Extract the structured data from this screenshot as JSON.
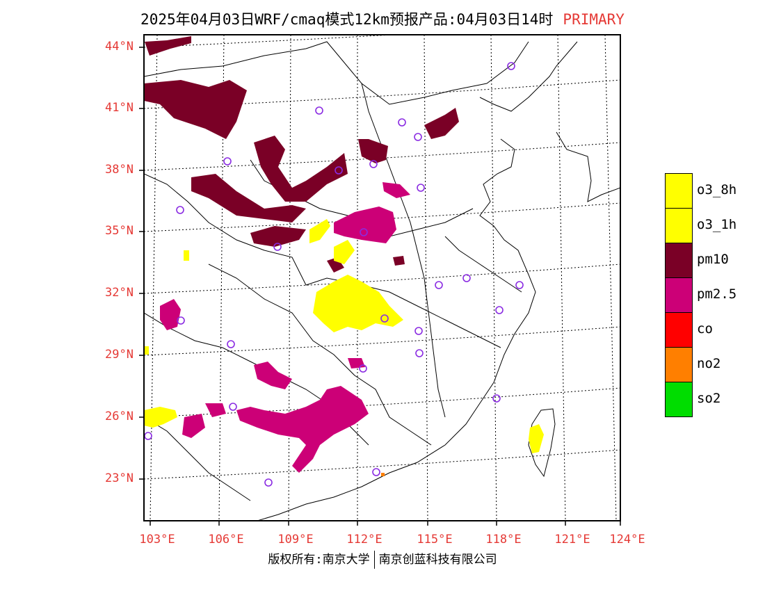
{
  "title": {
    "main": "2025年04月03日WRF/cmaq模式12km预报产品:04月03日14时",
    "tag": "PRIMARY"
  },
  "colors": {
    "label_red": "#e53935",
    "pm10": "#7a0026",
    "pm25": "#cc0077",
    "o3": "#ffff00",
    "co": "#ff0000",
    "no2": "#ff7f00",
    "so2": "#00dd00",
    "station_ring": "#8a2be2"
  },
  "lat_labels": [
    {
      "text": "44°N",
      "lat": 44
    },
    {
      "text": "41°N",
      "lat": 41
    },
    {
      "text": "38°N",
      "lat": 38
    },
    {
      "text": "35°N",
      "lat": 35
    },
    {
      "text": "32°N",
      "lat": 32
    },
    {
      "text": "29°N",
      "lat": 29
    },
    {
      "text": "26°N",
      "lat": 26
    },
    {
      "text": "23°N",
      "lat": 23
    }
  ],
  "lon_labels": [
    {
      "text": "103°E",
      "lon": 103
    },
    {
      "text": "106°E",
      "lon": 106
    },
    {
      "text": "109°E",
      "lon": 109
    },
    {
      "text": "112°E",
      "lon": 112
    },
    {
      "text": "115°E",
      "lon": 115
    },
    {
      "text": "118°E",
      "lon": 118
    },
    {
      "text": "121°E",
      "lon": 121
    },
    {
      "text": "124°E",
      "lon": 124
    }
  ],
  "legend": [
    {
      "label": "o3_8h",
      "color": "#ffff00"
    },
    {
      "label": "o3_1h",
      "color": "#ffff00"
    },
    {
      "label": "pm10",
      "color": "#7a0026"
    },
    {
      "label": "pm2.5",
      "color": "#cc0077"
    },
    {
      "label": "co",
      "color": "#ff0000"
    },
    {
      "label": "no2",
      "color": "#ff7f00"
    },
    {
      "label": "so2",
      "color": "#00dd00"
    }
  ],
  "footer": {
    "left": "版权所有:南京大学",
    "right": "南京创蓝科技有限公司"
  }
}
